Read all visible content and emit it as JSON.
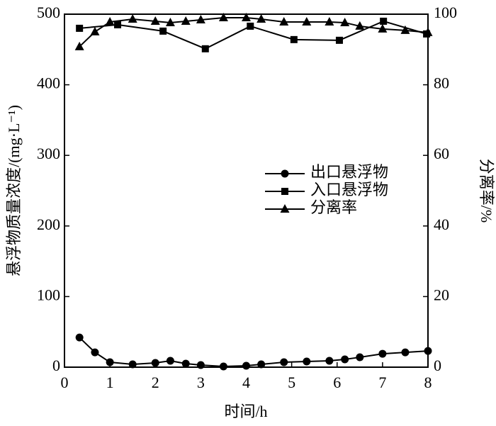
{
  "chart_data": {
    "type": "line",
    "x_label": "时间/h",
    "y_label": "悬浮物质量浓度/(mg·L⁻¹)",
    "y2_label": "分离率/%",
    "xlim": [
      0,
      8
    ],
    "xticks": [
      0,
      1,
      2,
      3,
      4,
      5,
      6,
      7,
      8
    ],
    "ylim": [
      0,
      500
    ],
    "yticks": [
      0,
      100,
      200,
      300,
      400,
      500
    ],
    "y2lim": [
      0,
      100
    ],
    "y2ticks": [
      0,
      20,
      40,
      60,
      80,
      100
    ],
    "series": [
      {
        "name": "出口悬浮物",
        "color": "#000000",
        "marker": "circle",
        "x": [
          0.33,
          0.67,
          1,
          1.5,
          2,
          2.33,
          2.67,
          3,
          3.5,
          4,
          4.33,
          4.83,
          5.33,
          5.83,
          6.17,
          6.5,
          7,
          7.5,
          8
        ],
        "values": [
          42,
          21,
          7,
          4,
          6,
          9,
          5,
          3,
          1,
          2,
          4,
          7,
          8,
          9,
          11,
          14,
          19,
          21,
          23
        ]
      },
      {
        "name": "入口悬浮物",
        "color": "#000000",
        "marker": "square",
        "x": [
          0.33,
          1.17,
          2.17,
          3.1,
          4.09,
          5.05,
          6.05,
          7.02,
          7.97
        ],
        "values": [
          480,
          485,
          476,
          451,
          483,
          464,
          463,
          490,
          472
        ]
      },
      {
        "name": "分离率",
        "color": "#000000",
        "marker": "triangle",
        "axis": "y2",
        "x": [
          0.33,
          0.67,
          1,
          1.5,
          2,
          2.33,
          2.67,
          3,
          3.5,
          4,
          4.33,
          4.83,
          5.33,
          5.83,
          6.17,
          6.5,
          7,
          7.5,
          8
        ],
        "values": [
          90.8,
          95,
          97.8,
          98.6,
          98,
          97.6,
          98,
          98.4,
          99,
          99,
          98.6,
          97.8,
          97.8,
          97.8,
          97.6,
          96.6,
          95.8,
          95.4,
          94.8
        ]
      }
    ]
  }
}
